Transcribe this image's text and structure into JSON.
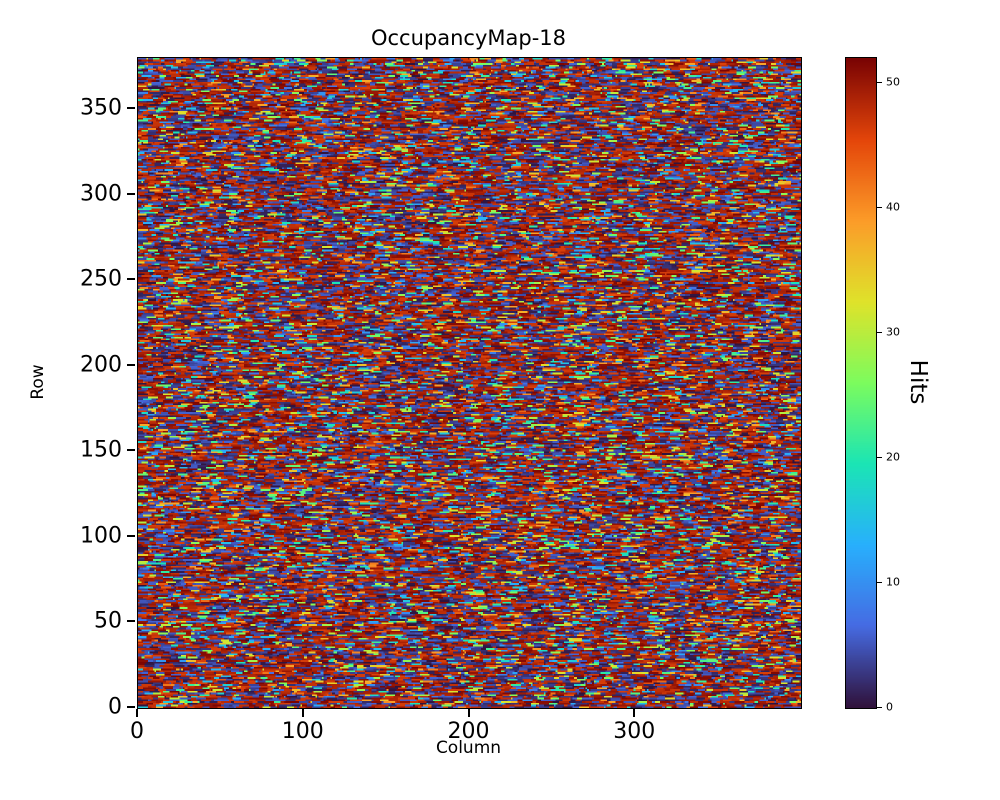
{
  "figure": {
    "background": "#ffffff",
    "text_color": "#000000"
  },
  "chart_data": {
    "type": "heatmap",
    "title": "OccupancyMap-18",
    "xlabel": "Column",
    "ylabel": "Row",
    "x_range": [
      0,
      400
    ],
    "y_range": [
      0,
      380
    ],
    "x_ticks": [
      0,
      100,
      200,
      300
    ],
    "y_ticks": [
      0,
      50,
      100,
      150,
      200,
      250,
      300,
      350
    ],
    "grid": {
      "cols": 400,
      "rows": 380,
      "seed": 18
    },
    "colormap": "turbo",
    "colorbar": {
      "label": "Hits",
      "ticks": [
        0,
        10,
        20,
        30,
        40,
        50
      ],
      "vmin": 0,
      "vmax": 52
    },
    "legend": "none",
    "grid_lines": false,
    "data_description": "Dense pseudo-random per-pixel hit counts in [0,52]; bimodal distribution: ~45% high values 46-52 (dark red dashes), ~37% low values 0-6 (dark blue/purple background), remainder mid-range 7-45 (cyan/green/yellow/orange speckles), arranged in short horizontal runs of 1-6 pixels",
    "distribution": {
      "p_high": 0.45,
      "high_range": [
        46,
        52
      ],
      "p_low": 0.37,
      "low_range": [
        0,
        6
      ],
      "mid_range": [
        7,
        45
      ],
      "max_run": 6
    }
  }
}
